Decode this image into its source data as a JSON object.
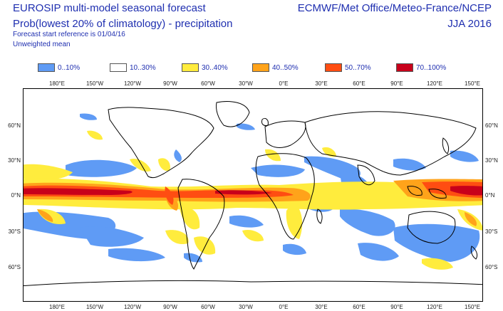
{
  "title": "EUROSIP multi-model seasonal forecast",
  "subtitle": "Prob(lowest 20% of climatology) - precipitation",
  "forecast_ref": "Forecast start reference is 01/04/16",
  "weighting": "Unweighted mean",
  "centres": "ECMWF/Met Office/Meteo-France/NCEP",
  "season": "JJA 2016",
  "legend": [
    {
      "label": "0..10%",
      "color": "#5f9bf5"
    },
    {
      "label": "10..30%",
      "color": "#ffffff"
    },
    {
      "label": "30..40%",
      "color": "#ffec3d"
    },
    {
      "label": "40..50%",
      "color": "#ffa31a"
    },
    {
      "label": "50..70%",
      "color": "#ff4d12"
    },
    {
      "label": "70..100%",
      "color": "#c8001b"
    }
  ],
  "lon_ticks": [
    "180°E",
    "150°W",
    "120°W",
    "90°W",
    "60°W",
    "30°W",
    "0°E",
    "30°E",
    "60°E",
    "90°E",
    "120°E",
    "150°E"
  ],
  "lat_ticks": [
    "60°N",
    "30°N",
    "0°N",
    "30°S",
    "60°S"
  ]
}
